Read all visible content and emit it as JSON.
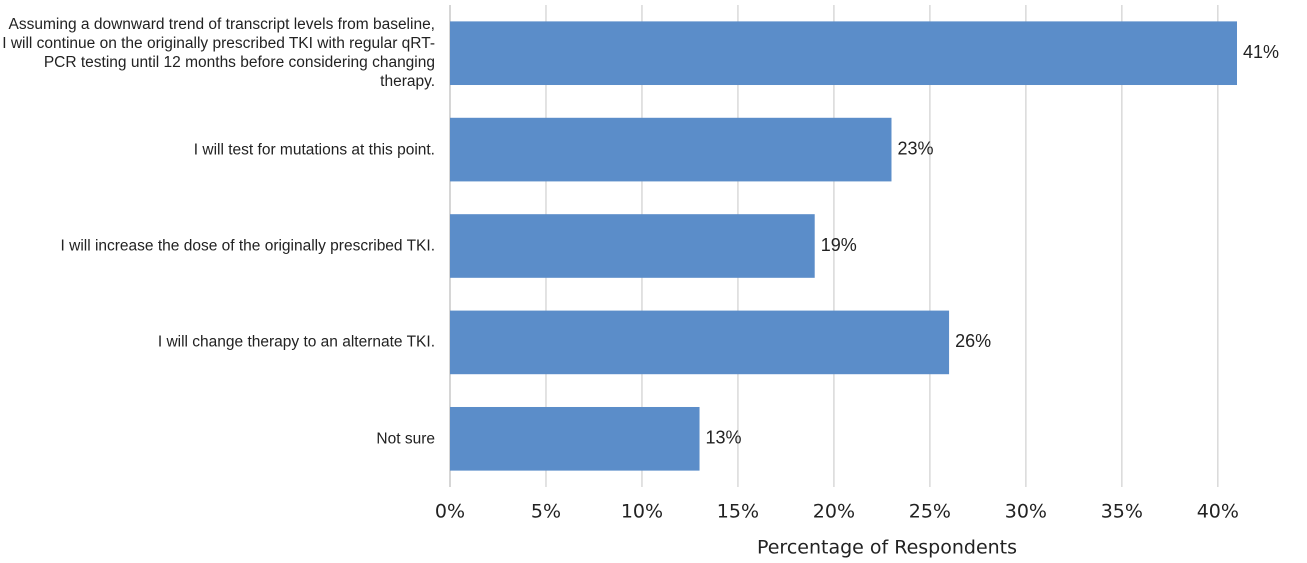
{
  "chart_data": {
    "type": "barh",
    "categories": [
      "Assuming a downward trend of transcript levels from baseline, I will continue on the originally prescribed TKI with regular qRT-PCR testing until 12 months before considering changing therapy.",
      "I will test for mutations at this point.",
      "I will increase the dose of the originally prescribed TKI.",
      "I will change therapy to an alternate TKI.",
      "Not sure"
    ],
    "values": [
      41,
      23,
      19,
      26,
      13
    ],
    "value_labels": [
      "41%",
      "23%",
      "19%",
      "26%",
      "13%"
    ],
    "color": "#5b8dc9",
    "xlabel": "Percentage of Respondents",
    "xlim": [
      0,
      41
    ],
    "xticks": [
      {
        "value": 0,
        "label": "0%"
      },
      {
        "value": 5,
        "label": "5%"
      },
      {
        "value": 10,
        "label": "10%"
      },
      {
        "value": 15,
        "label": "15%"
      },
      {
        "value": 20,
        "label": "20%"
      },
      {
        "value": 25,
        "label": "25%"
      },
      {
        "value": 30,
        "label": "30%"
      },
      {
        "value": 35,
        "label": "35%"
      },
      {
        "value": 40,
        "label": "40%"
      }
    ],
    "grid": true
  }
}
